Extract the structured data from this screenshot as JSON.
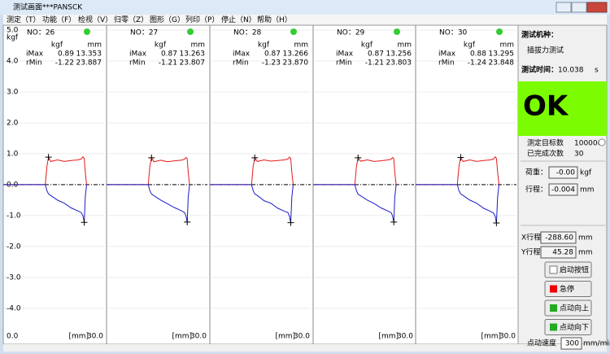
{
  "window": {
    "title": "测试画面***PANSCK"
  },
  "menu": [
    "测定（T）",
    "功能（F）",
    "检视（V）",
    "归零（Z）",
    "图形（G）",
    "列印（P）",
    "停止（N）",
    "帮助（H）"
  ],
  "chart_data": [
    {
      "type": "line",
      "title": "NO：26",
      "columns": [
        "kgf",
        "mm"
      ],
      "rows": [
        "iMax",
        "rMin"
      ],
      "stats": {
        "imax_kgf": 0.89,
        "imax_mm": 13.353,
        "rmin_kgf": -1.22,
        "rmin_mm": 23.887
      },
      "ylabel": "kgf",
      "xlabel": "[mm]",
      "xlim": [
        0,
        30
      ],
      "ylim": [
        -4.9,
        5.0
      ],
      "yticks": [
        {
          "value": 5,
          "label": "5.0"
        },
        {
          "value": 4,
          "label": "4.0"
        },
        {
          "value": 3,
          "label": "3.0"
        },
        {
          "value": 2,
          "label": "2.0"
        },
        {
          "value": 1,
          "label": "1.0"
        },
        {
          "value": 0,
          "label": "0.0"
        },
        {
          "value": -1,
          "label": "-1.0"
        },
        {
          "value": -2,
          "label": "-2.0"
        },
        {
          "value": -3,
          "label": "-3.0"
        },
        {
          "value": -4,
          "label": "-4.0"
        }
      ],
      "xticks": [
        {
          "value": 0,
          "label": "0.0"
        },
        {
          "value": 30,
          "label": "30.0"
        }
      ],
      "x": [
        0,
        12.4,
        12.9,
        13.35,
        14,
        16,
        18,
        20,
        22,
        23,
        23.5,
        23.9,
        24.2,
        24.6
      ],
      "series": [
        {
          "color": "#e41a1c",
          "values": [
            0,
            0,
            0.6,
            0.89,
            0.75,
            0.8,
            0.75,
            0.78,
            0.8,
            0.83,
            0.9,
            0.85,
            0.4,
            0
          ]
        },
        {
          "color": "#1c1cc4",
          "values": [
            0,
            0,
            -0.2,
            -0.3,
            -0.35,
            -0.5,
            -0.6,
            -0.75,
            -0.85,
            -0.9,
            -1.0,
            -1.22,
            -0.4,
            0
          ]
        }
      ]
    },
    {
      "type": "line",
      "title": "NO：27",
      "columns": [
        "kgf",
        "mm"
      ],
      "rows": [
        "iMax",
        "rMin"
      ],
      "stats": {
        "imax_kgf": 0.87,
        "imax_mm": 13.263,
        "rmin_kgf": -1.21,
        "rmin_mm": 23.807
      },
      "xlabel": "[mm]",
      "xlim": [
        0,
        30
      ],
      "ylim": [
        -4.9,
        5.0
      ],
      "xticks": [
        {
          "value": 30,
          "label": "30.0"
        }
      ],
      "x": [
        0,
        12.3,
        12.8,
        13.26,
        14,
        16,
        18,
        20,
        22,
        23,
        23.4,
        23.8,
        24.1,
        24.5
      ],
      "series": [
        {
          "color": "#e41a1c",
          "values": [
            0,
            0,
            0.6,
            0.87,
            0.74,
            0.79,
            0.74,
            0.77,
            0.79,
            0.82,
            0.88,
            0.84,
            0.4,
            0
          ]
        },
        {
          "color": "#1c1cc4",
          "values": [
            0,
            0,
            -0.2,
            -0.3,
            -0.36,
            -0.5,
            -0.62,
            -0.74,
            -0.84,
            -0.9,
            -1.0,
            -1.21,
            -0.4,
            0
          ]
        }
      ]
    },
    {
      "type": "line",
      "title": "NO：28",
      "columns": [
        "kgf",
        "mm"
      ],
      "rows": [
        "iMax",
        "rMin"
      ],
      "stats": {
        "imax_kgf": 0.87,
        "imax_mm": 13.266,
        "rmin_kgf": -1.23,
        "rmin_mm": {
          "value": 23.87,
          "label": "23.870"
        }
      },
      "xlabel": "[mm]",
      "xlim": [
        0,
        30
      ],
      "ylim": [
        -4.9,
        5.0
      ],
      "xticks": [
        {
          "value": 30,
          "label": "30.0"
        }
      ],
      "x": [
        0,
        12.3,
        12.8,
        13.27,
        14,
        16,
        18,
        20,
        22,
        23,
        23.5,
        23.87,
        24.2,
        24.6
      ],
      "series": [
        {
          "color": "#e41a1c",
          "values": [
            0,
            0,
            0.6,
            0.87,
            0.75,
            0.8,
            0.76,
            0.78,
            0.8,
            0.83,
            0.89,
            0.85,
            0.4,
            0
          ]
        },
        {
          "color": "#1c1cc4",
          "values": [
            0,
            0,
            -0.2,
            -0.3,
            -0.35,
            -0.52,
            -0.6,
            -0.76,
            -0.86,
            -0.9,
            -1.02,
            -1.23,
            -0.4,
            0
          ]
        }
      ]
    },
    {
      "type": "line",
      "title": "NO：29",
      "columns": [
        "kgf",
        "mm"
      ],
      "rows": [
        "iMax",
        "rMin"
      ],
      "stats": {
        "imax_kgf": 0.87,
        "imax_mm": 13.256,
        "rmin_kgf": -1.21,
        "rmin_mm": 23.803
      },
      "xlabel": "[mm]",
      "xlim": [
        0,
        30
      ],
      "ylim": [
        -4.9,
        5.0
      ],
      "xticks": [
        {
          "value": 30,
          "label": "30.0"
        }
      ],
      "x": [
        0,
        12.3,
        12.8,
        13.26,
        14,
        16,
        18,
        20,
        22,
        23,
        23.4,
        23.8,
        24.1,
        24.5
      ],
      "series": [
        {
          "color": "#e41a1c",
          "values": [
            0,
            0,
            0.6,
            0.87,
            0.76,
            0.8,
            0.75,
            0.77,
            0.8,
            0.82,
            0.88,
            0.84,
            0.4,
            0
          ]
        },
        {
          "color": "#1c1cc4",
          "values": [
            0,
            0,
            -0.2,
            -0.31,
            -0.36,
            -0.5,
            -0.61,
            -0.75,
            -0.85,
            -0.9,
            -1.0,
            -1.21,
            -0.4,
            0
          ]
        }
      ]
    },
    {
      "type": "line",
      "title": "NO：30",
      "columns": [
        "kgf",
        "mm"
      ],
      "rows": [
        "iMax",
        "rMin"
      ],
      "stats": {
        "imax_kgf": 0.88,
        "imax_mm": 13.295,
        "rmin_kgf": -1.24,
        "rmin_mm": 23.848
      },
      "xlabel": "[mm]",
      "xlim": [
        0,
        30
      ],
      "ylim": [
        -4.9,
        5.0
      ],
      "xticks": [
        {
          "value": 30,
          "label": "30.0"
        }
      ],
      "x": [
        0,
        12.3,
        12.8,
        13.3,
        14,
        16,
        18,
        20,
        22,
        23,
        23.5,
        23.85,
        24.2,
        24.6
      ],
      "series": [
        {
          "color": "#e41a1c",
          "values": [
            0,
            0,
            0.6,
            0.88,
            0.75,
            0.8,
            0.75,
            0.78,
            0.8,
            0.83,
            0.9,
            0.85,
            0.4,
            0
          ]
        },
        {
          "color": "#1c1cc4",
          "values": [
            0,
            0,
            -0.2,
            -0.3,
            -0.35,
            -0.5,
            -0.6,
            -0.76,
            -0.86,
            -0.92,
            -1.03,
            -1.24,
            -0.4,
            0
          ]
        }
      ]
    }
  ],
  "right": {
    "machine_label": "测试机种：",
    "machine": "插拔力测试",
    "time_label": "测试时间：",
    "time": "10.038",
    "time_unit": "s",
    "result": "OK",
    "target_label": "测定目标数",
    "target": "100000",
    "done_label": "已完成次数",
    "done": "30",
    "load_label": "荷重：",
    "load": "-0.00",
    "load_unit": "kgf",
    "stroke_label": "行程：",
    "stroke": "-0.004",
    "stroke_unit": "mm",
    "x_label": "X行程：",
    "x": "-288.60",
    "x_unit": "mm",
    "y_label": "Y行程：",
    "y": "45.28",
    "y_unit": "mm",
    "buttons": [
      "启动按钮",
      "急停",
      "点动向上",
      "点动向下"
    ],
    "speed_label": "点动速度",
    "speed": "300",
    "speed_unit": "mm/mir"
  }
}
